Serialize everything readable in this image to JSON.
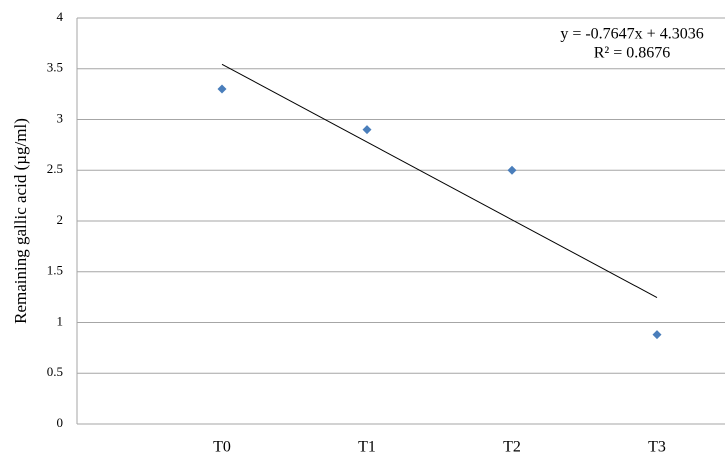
{
  "chart_data": {
    "type": "scatter",
    "y_axis_label": "Remaining gallic acid (µg/ml)",
    "categories": [
      "T0",
      "T1",
      "T2",
      "T3"
    ],
    "values": [
      3.3,
      2.9,
      2.5,
      0.88
    ],
    "color": "#4a7ebb",
    "trendline": true,
    "trendline_equation": "y = -0.7647x + 4.3036",
    "r_squared_label": "R² = 0.8676",
    "ylim": [
      0,
      4
    ],
    "yticks": [
      0,
      0.5,
      1,
      1.5,
      2,
      2.5,
      3,
      3.5,
      4
    ],
    "grid": true
  }
}
